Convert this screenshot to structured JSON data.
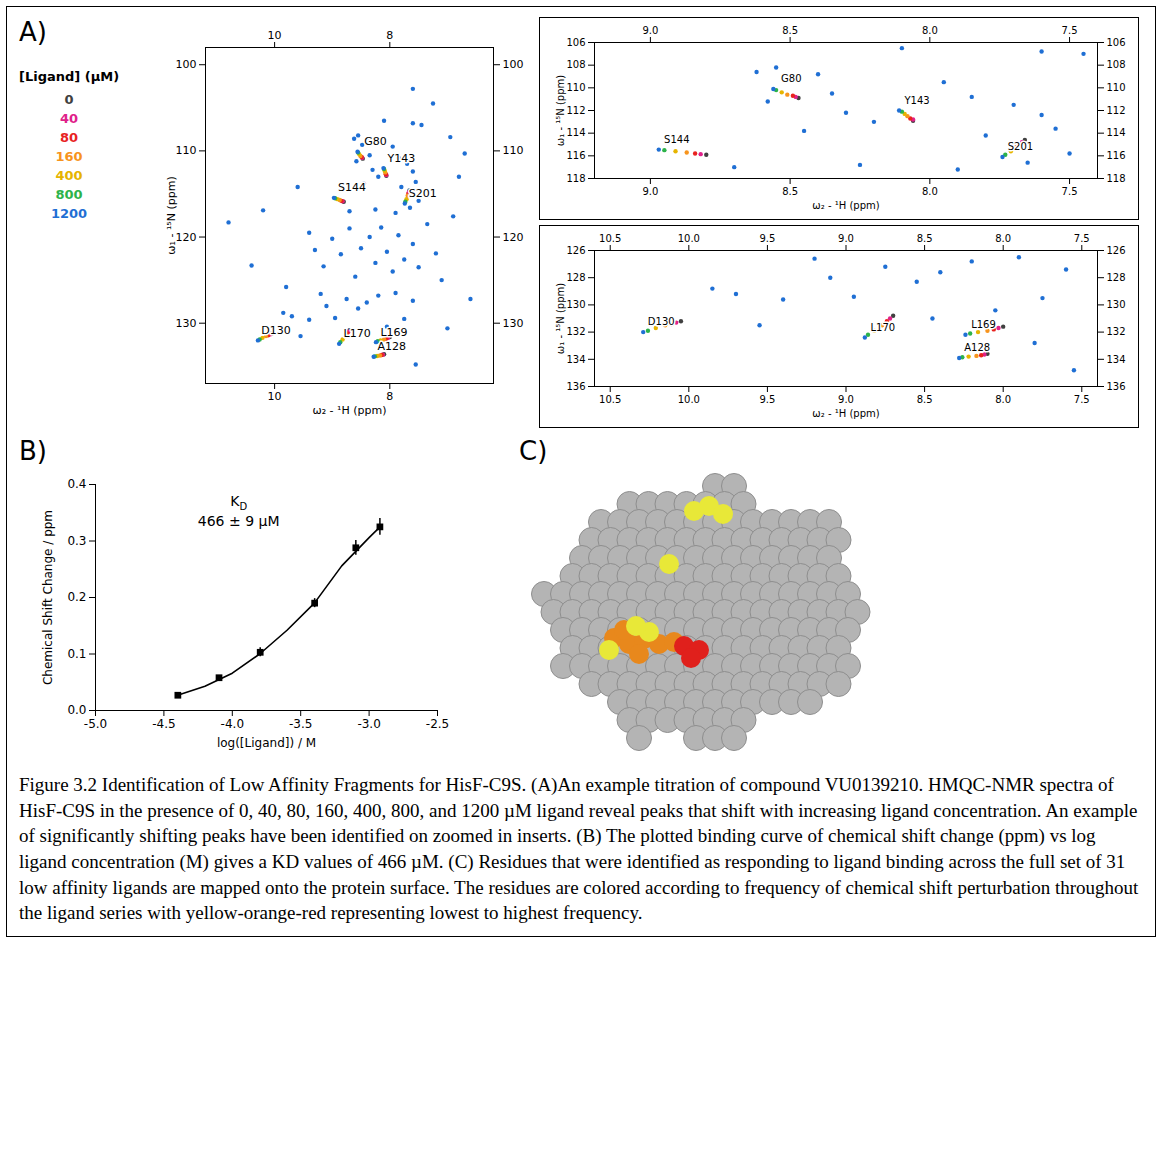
{
  "figure": {
    "caption": "Figure 3.2 Identification of Low Affinity Fragments for HisF-C9S. (A)An example titration of compound VU0139210. HMQC-NMR spectra of HisF-C9S in the presence of 0, 40, 80, 160, 400, 800, and 1200 µM ligand reveal peaks that shift with increasing ligand concentration. An example of significantly shifting peaks have been identified on zoomed in inserts. (B) The plotted binding curve of chemical shift change (ppm) vs log ligand concentration (M) gives a KD values of 466 µM. (C) Residues that were identified as responding to ligand binding across the full set of 31 low affinity ligands are mapped onto the protein surface. The residues are colored according to frequency of chemical shift perturbation throughout the ligand series with yellow-orange-red representing lowest to highest frequency.",
    "panel_c": {
      "title": "C)"
    }
  },
  "chart_data": [
    {
      "type": "scatter",
      "title": "A)",
      "x_label": "ω₂ - ¹H (ppm)",
      "y_label": "ω₁ - ¹⁵N (ppm)",
      "legend": "left",
      "legend_title": "[Ligand] (µM)",
      "xlim": [
        11.2,
        6.2
      ],
      "ylim": [
        137,
        98
      ],
      "xticks": [
        10,
        8
      ],
      "yticks": [
        100,
        110,
        120,
        130
      ],
      "peak_labels": [
        "S144",
        "G80",
        "Y143",
        "S201",
        "D130",
        "L170",
        "L169",
        "A128"
      ],
      "series": [
        {
          "name": "0",
          "color": "#404040",
          "x": [
            8.8,
            8.47,
            8.06,
            7.66,
            10.05,
            8.7,
            8.0,
            8.1
          ],
          "values": [
            115.9,
            110.9,
            112.9,
            114.6,
            131.2,
            130.8,
            131.6,
            133.6
          ]
        },
        {
          "name": "40",
          "color": "#e0218a",
          "x": [
            8.82,
            8.48,
            8.06,
            7.67,
            10.08,
            8.72,
            8.03,
            8.12
          ],
          "values": [
            115.85,
            110.8,
            112.8,
            114.8,
            131.3,
            131.0,
            131.7,
            133.65
          ]
        },
        {
          "name": "80",
          "color": "#e8231f",
          "x": [
            8.84,
            8.49,
            8.07,
            7.68,
            10.11,
            8.74,
            8.06,
            8.14
          ],
          "values": [
            115.8,
            110.7,
            112.7,
            115.0,
            131.4,
            131.2,
            131.8,
            133.7
          ]
        },
        {
          "name": "160",
          "color": "#f7941d",
          "x": [
            8.87,
            8.51,
            8.08,
            7.69,
            10.15,
            8.77,
            8.1,
            8.17
          ],
          "values": [
            115.7,
            110.6,
            112.5,
            115.2,
            131.5,
            131.5,
            131.9,
            133.75
          ]
        },
        {
          "name": "400",
          "color": "#e6b400",
          "x": [
            8.91,
            8.53,
            8.09,
            7.71,
            10.21,
            8.82,
            8.16,
            8.22
          ],
          "values": [
            115.6,
            110.4,
            112.3,
            115.6,
            131.7,
            131.9,
            132.0,
            133.8
          ]
        },
        {
          "name": "800",
          "color": "#2db34a",
          "x": [
            8.95,
            8.55,
            8.1,
            7.73,
            10.26,
            8.86,
            8.21,
            8.26
          ],
          "values": [
            115.5,
            110.2,
            112.1,
            115.9,
            131.9,
            132.2,
            132.1,
            133.85
          ]
        },
        {
          "name": "1200",
          "color": "#1f6fd4",
          "x": [
            8.97,
            8.56,
            8.11,
            7.74,
            10.29,
            8.88,
            8.24,
            8.28,
            8.55,
            8.62,
            8.48,
            8.4,
            8.35,
            8.58,
            8.3,
            8.2,
            8.45,
            7.95,
            7.85,
            7.7,
            7.6,
            7.55,
            7.8,
            7.65,
            7.5,
            8.25,
            7.9,
            8.7,
            7.45,
            7.6,
            8.1,
            9.85,
            9.7,
            9.4,
            9.1,
            8.95,
            8.75,
            8.55,
            8.4,
            8.2,
            7.9,
            7.6,
            7.75,
            8.05,
            8.45,
            7.8,
            7.55,
            9.2,
            10.8,
            10.2,
            9.6,
            9.4,
            9.3,
            9.15,
            9.0,
            8.85,
            8.7,
            8.6,
            8.5,
            8.35,
            8.25,
            8.15,
            8.05,
            7.95,
            7.85,
            7.75,
            7.6,
            7.5,
            7.35,
            7.2,
            7.1,
            6.9,
            6.8,
            6.7,
            6.95,
            7.25,
            7.6,
            9.8,
            10.4,
            9.55,
            6.6,
            7.0
          ],
          "values": [
            115.45,
            110.1,
            112.0,
            116.1,
            132.0,
            132.4,
            132.2,
            133.9,
            108.2,
            108.6,
            109.3,
            108.8,
            110.5,
            111.2,
            112.2,
            113.0,
            113.8,
            109.5,
            110.8,
            111.5,
            112.4,
            113.6,
            114.2,
            116.6,
            115.8,
            116.8,
            117.2,
            117.0,
            107.0,
            106.8,
            106.5,
            128.8,
            129.2,
            129.6,
            128.0,
            129.4,
            127.2,
            128.3,
            127.6,
            126.8,
            126.5,
            127.4,
            129.5,
            130.4,
            131.0,
            132.8,
            134.8,
            126.6,
            118.3,
            116.9,
            114.2,
            119.5,
            121.5,
            123.4,
            120.2,
            122.0,
            119.0,
            124.6,
            121.3,
            120.0,
            123.0,
            118.9,
            121.7,
            124.0,
            119.8,
            122.6,
            120.8,
            123.5,
            118.5,
            121.9,
            125.0,
            117.6,
            113.0,
            110.3,
            108.4,
            104.5,
            102.8,
            125.8,
            123.3,
            131.5,
            127.2,
            130.6
          ]
        }
      ],
      "insets": [
        {
          "xlim": [
            9.2,
            7.4
          ],
          "ylim": [
            118,
            106
          ],
          "xticks": [
            {
              "value": 9,
              "label": "9.0"
            },
            8.5,
            {
              "value": 8,
              "label": "8.0"
            },
            7.5
          ],
          "yticks": [
            106,
            108,
            110,
            112,
            114,
            116,
            118
          ]
        },
        {
          "xlim": [
            10.6,
            7.4
          ],
          "ylim": [
            136,
            126
          ],
          "xticks": [
            10.5,
            {
              "value": 10,
              "label": "10.0"
            },
            9.5,
            {
              "value": 9,
              "label": "9.0"
            },
            8.5,
            {
              "value": 8,
              "label": "8.0"
            },
            7.5
          ],
          "yticks": [
            126,
            128,
            130,
            132,
            134,
            136
          ]
        }
      ]
    },
    {
      "type": "scatter",
      "title": "B)",
      "x_label": "log([Ligand]) / M",
      "y_label": "Chemical Shift Change / ppm",
      "xlim": [
        -5,
        -2.5
      ],
      "ylim": [
        0,
        0.4
      ],
      "xticks": [
        {
          "value": -5,
          "label": "-5.0"
        },
        -4.5,
        {
          "value": -4,
          "label": "-4.0"
        },
        -3.5,
        {
          "value": -3,
          "label": "-3.0"
        },
        -2.5
      ],
      "yticks": [
        {
          "value": 0,
          "label": "0.0"
        },
        0.1,
        0.2,
        0.3,
        0.4
      ],
      "color": "#000000",
      "marker": "square",
      "x": [
        -4.398,
        -4.097,
        -3.796,
        -3.398,
        -3.097,
        -2.921
      ],
      "values": [
        0.027,
        0.058,
        0.103,
        0.19,
        0.288,
        0.325
      ],
      "errors": [
        0.003,
        0.004,
        0.008,
        0.008,
        0.013,
        0.015
      ],
      "fit": {
        "x": [
          -4.4,
          -4.2,
          -4.0,
          -3.8,
          -3.6,
          -3.4,
          -3.2,
          -3.0,
          -2.92
        ],
        "values": [
          0.027,
          0.043,
          0.066,
          0.1,
          0.142,
          0.19,
          0.256,
          0.306,
          0.325
        ]
      },
      "annotations": [
        "KD",
        "466 ± 9 µM"
      ]
    }
  ]
}
